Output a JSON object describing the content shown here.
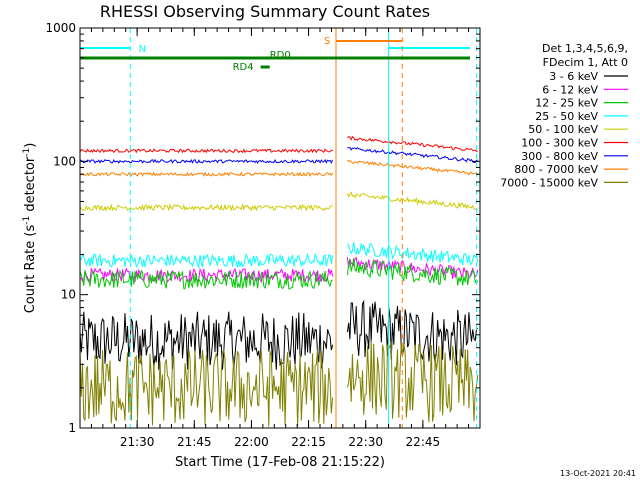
{
  "chart_data": {
    "type": "line",
    "title": "RHESSI Observing Summary Count Rates",
    "xlabel": "Start Time (17-Feb-08 21:15:22)",
    "ylabel": "Count Rate (s",
    "ylabel_sup1": "-1",
    "ylabel_mid": " detector",
    "ylabel_sup2": "-1",
    "ylabel_end": ")",
    "yscale": "log",
    "ylim": [
      1,
      1000
    ],
    "xlim_minutes": [
      21.25,
      23.0
    ],
    "y_ticks": [
      {
        "value": 1,
        "label": "1"
      },
      {
        "value": 10,
        "label": "10"
      },
      {
        "value": 100,
        "label": "100"
      },
      {
        "value": 1000,
        "label": "1000"
      }
    ],
    "x_ticks": [
      {
        "value": 21.5,
        "label": "21:30"
      },
      {
        "value": 21.75,
        "label": "21:45"
      },
      {
        "value": 22.0,
        "label": "22:00"
      },
      {
        "value": 22.25,
        "label": "22:15"
      },
      {
        "value": 22.5,
        "label": "22:30"
      },
      {
        "value": 22.75,
        "label": "22:45"
      }
    ],
    "legend_header": [
      "Det 1,3,4,5,6,9,",
      "FDecim 1, Att 0"
    ],
    "legend_placement": "right",
    "series": [
      {
        "name": "3 - 6 keV",
        "color": "#000000",
        "level": 4.5,
        "noise": 0.22
      },
      {
        "name": "6 - 12 keV",
        "color": "#ff00ff",
        "level": 14,
        "noise": 0.05
      },
      {
        "name": "12 - 25 keV",
        "color": "#00c800",
        "level": 13,
        "noise": 0.07
      },
      {
        "name": "25 - 50 keV",
        "color": "#00ffff",
        "level": 18,
        "noise": 0.05
      },
      {
        "name": "50 - 100 keV",
        "color": "#cccc00",
        "level": 45,
        "noise": 0.02
      },
      {
        "name": "100 - 300 keV",
        "color": "#ff0000",
        "level": 120,
        "noise": 0.012
      },
      {
        "name": "300 - 800 keV",
        "color": "#0000ff",
        "level": 100,
        "noise": 0.012
      },
      {
        "name": "800 - 7000 keV",
        "color": "#ff8000",
        "level": 80,
        "noise": 0.012
      },
      {
        "name": "7000 - 15000 keV",
        "color": "#808000",
        "level": 2.0,
        "noise": 0.3
      }
    ],
    "markers": [
      {
        "label": "N",
        "color": "#00ffff"
      },
      {
        "label": "S",
        "color": "#ff8000"
      },
      {
        "label": "RD0",
        "color": "#008000"
      },
      {
        "label": "RD4",
        "color": "#008000"
      }
    ],
    "footer": "13-Oct-2021 20:41"
  }
}
